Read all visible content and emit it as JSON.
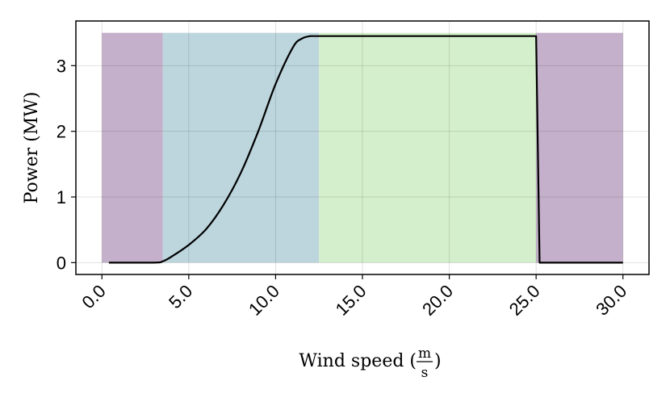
{
  "chart_data": {
    "type": "line",
    "xlabel_prefix": "Wind speed (",
    "xlabel_unit_numerator": "m",
    "xlabel_unit_denominator": "s",
    "xlabel_suffix": ")",
    "ylabel": "Power (MW)",
    "xlim": [
      -1.5,
      31.5
    ],
    "ylim": [
      -0.18,
      3.68
    ],
    "xticks": [
      0,
      5,
      10,
      15,
      20,
      25,
      30
    ],
    "xtick_labels": [
      "0.0",
      "5.0",
      "10.0",
      "15.0",
      "20.0",
      "25.0",
      "30.0"
    ],
    "yticks": [
      0,
      1,
      2,
      3
    ],
    "ytick_labels": [
      "0",
      "1",
      "2",
      "3"
    ],
    "grid": true,
    "regions": [
      {
        "x_start": 0,
        "x_end": 3.5,
        "y_top": 3.5,
        "color": "#c4b0cb"
      },
      {
        "x_start": 3.5,
        "x_end": 12.5,
        "y_top": 3.5,
        "color": "#bdd5dd"
      },
      {
        "x_start": 12.5,
        "x_end": 25,
        "y_top": 3.5,
        "color": "#d4efcb"
      },
      {
        "x_start": 25,
        "x_end": 30,
        "y_top": 3.5,
        "color": "#c4b0cb"
      }
    ],
    "series": [
      {
        "color": "#000000",
        "x": [
          0.4,
          3.0,
          3.5,
          4.0,
          5.0,
          6.0,
          7.0,
          8.0,
          9.0,
          10.0,
          11.0,
          11.5,
          12.0,
          12.5,
          13.0,
          25.0,
          25.2,
          30.0
        ],
        "y": [
          0,
          0,
          0.02,
          0.09,
          0.27,
          0.51,
          0.88,
          1.37,
          2.0,
          2.72,
          3.28,
          3.41,
          3.45,
          3.45,
          3.45,
          3.45,
          0,
          0
        ]
      }
    ]
  }
}
